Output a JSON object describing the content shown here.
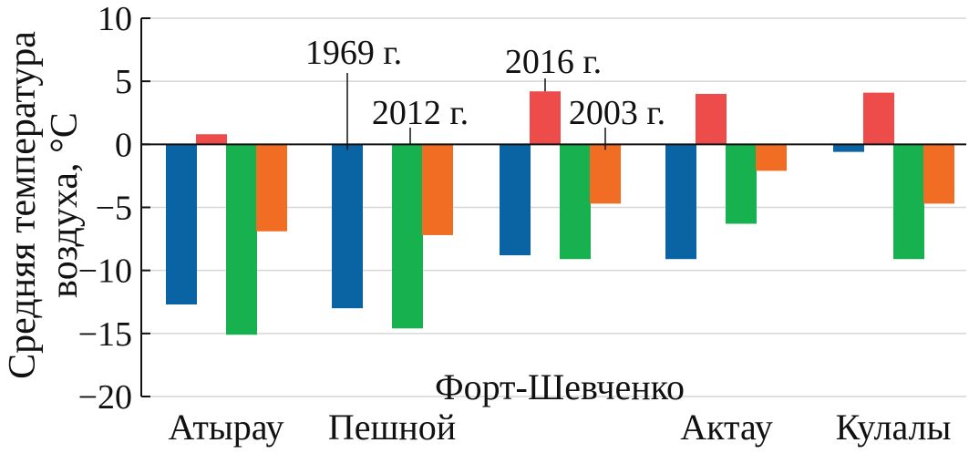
{
  "chart_data": {
    "type": "bar",
    "ylabel_line1": "Средняя температура",
    "ylabel_line2": "воздуха, °С",
    "ylim": [
      -20,
      10
    ],
    "yticks": [
      10,
      5,
      0,
      -5,
      -10,
      -15,
      -20
    ],
    "ytick_labels": [
      "10",
      "5",
      "0",
      "−5",
      "−10",
      "−15",
      "−20"
    ],
    "grid": true,
    "categories": [
      "Атырау",
      "Пешной",
      "Форт-Шевченко",
      "Актау",
      "Кулалы"
    ],
    "series": [
      {
        "values": [
          -12.7,
          -13.0,
          -8.8,
          -9.1,
          -0.6
        ],
        "color": "#0a64a4"
      },
      {
        "values": [
          0.8,
          0.0,
          4.2,
          4.0,
          4.1
        ],
        "color": "#ee4b4b"
      },
      {
        "values": [
          -15.1,
          -14.6,
          -9.1,
          -6.3,
          -9.1
        ],
        "color": "#18b14f"
      },
      {
        "values": [
          -6.9,
          -7.2,
          -4.7,
          -2.1,
          -4.7
        ],
        "color": "#f26d24"
      }
    ],
    "annotations": [
      {
        "text": "1969 г.",
        "category": 1,
        "series": 0
      },
      {
        "text": "2012 г.",
        "category": 1,
        "series": 1
      },
      {
        "text": "2016 г.",
        "category": 2,
        "series": 1
      },
      {
        "text": "2003 г.",
        "category": 2,
        "series": 3
      }
    ]
  }
}
